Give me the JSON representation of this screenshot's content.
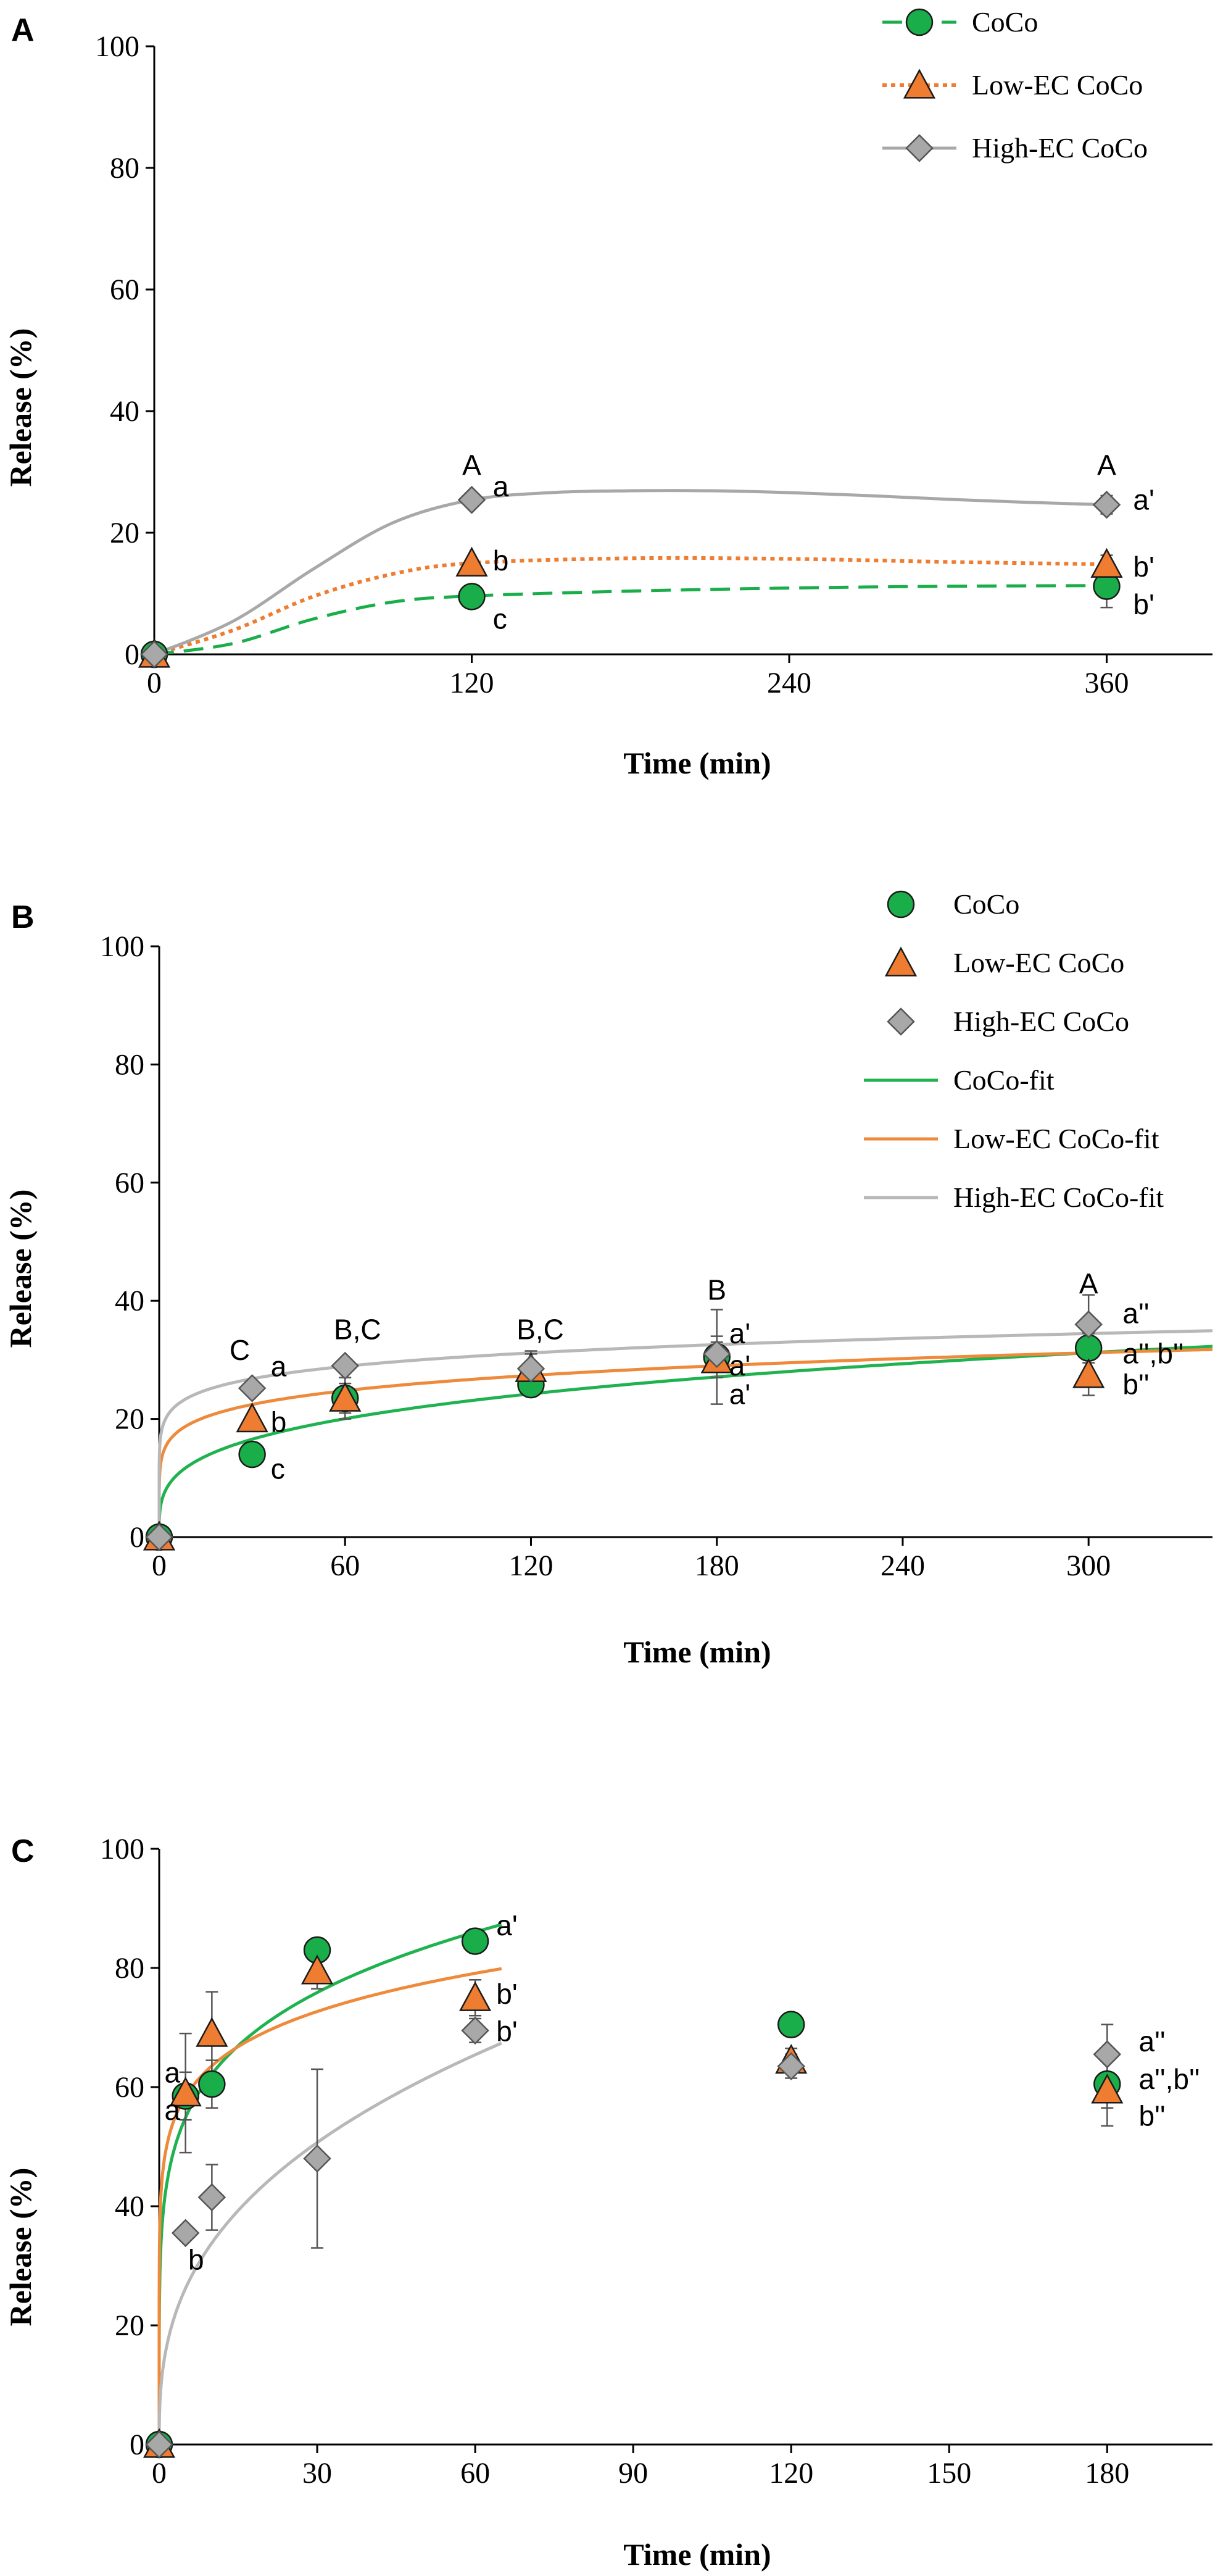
{
  "colors": {
    "coco": "#1aae4a",
    "low": "#ee7d31",
    "high": "#a8a8a8",
    "low_fit": "#ee8a3b",
    "high_fit": "#b8b8b8",
    "coco_fit": "#1fb24f",
    "axis": "#000000"
  },
  "chart_data": [
    {
      "panel": "A",
      "type": "line",
      "ylabel": "Release (%)",
      "xlabel": "Time (min)",
      "xlim": [
        0,
        400
      ],
      "ylim": [
        0,
        100
      ],
      "x_ticks": [
        0,
        120,
        240,
        360
      ],
      "y_ticks": [
        0,
        20,
        40,
        60,
        80,
        100
      ],
      "legend_position": "top-right",
      "legend": [
        {
          "label": "CoCo",
          "key": "coco",
          "marker": "circle",
          "line": "dashed"
        },
        {
          "label": "Low-EC CoCo",
          "key": "low",
          "marker": "triangle",
          "line": "dotted"
        },
        {
          "label": "High-EC CoCo",
          "key": "high",
          "marker": "diamond",
          "line": "solid"
        }
      ],
      "series": [
        {
          "name": "CoCo",
          "key": "coco",
          "marker": "circle",
          "line": "dashed",
          "x": [
            0,
            120,
            360
          ],
          "values": [
            0,
            9.5,
            11.2
          ],
          "err": [
            0,
            0,
            3.5
          ],
          "smooth": [
            [
              0,
              0
            ],
            [
              30,
              1.8
            ],
            [
              60,
              5.8
            ],
            [
              90,
              8.6
            ],
            [
              120,
              9.6
            ],
            [
              180,
              10.4
            ],
            [
              240,
              10.9
            ],
            [
              300,
              11.2
            ],
            [
              360,
              11.3
            ]
          ]
        },
        {
          "name": "Low-EC CoCo",
          "key": "low",
          "marker": "triangle",
          "line": "dotted",
          "x": [
            0,
            120,
            360
          ],
          "values": [
            0,
            15,
            14.8
          ],
          "err": [
            0,
            0,
            1.5
          ],
          "smooth": [
            [
              0,
              0
            ],
            [
              30,
              4.0
            ],
            [
              60,
              9.5
            ],
            [
              90,
              13.2
            ],
            [
              120,
              15.0
            ],
            [
              180,
              15.8
            ],
            [
              240,
              15.7
            ],
            [
              300,
              15.2
            ],
            [
              360,
              14.8
            ]
          ]
        },
        {
          "name": "High-EC CoCo",
          "key": "high",
          "marker": "diamond",
          "line": "solid",
          "x": [
            0,
            120,
            360
          ],
          "values": [
            0,
            25.4,
            24.6
          ],
          "err": [
            0,
            0,
            1.5
          ],
          "smooth": [
            [
              0,
              0
            ],
            [
              30,
              5.5
            ],
            [
              60,
              14.0
            ],
            [
              90,
              21.6
            ],
            [
              120,
              25.4
            ],
            [
              150,
              26.6
            ],
            [
              180,
              26.9
            ],
            [
              210,
              26.9
            ],
            [
              240,
              26.6
            ],
            [
              270,
              26.1
            ],
            [
              300,
              25.5
            ],
            [
              330,
              25.0
            ],
            [
              360,
              24.6
            ]
          ]
        }
      ],
      "annotations": [
        {
          "text": "A",
          "x": 120,
          "y": 29.5,
          "anchor": "middle"
        },
        {
          "text": "a",
          "x": 128,
          "y": 26.0,
          "anchor": "start"
        },
        {
          "text": "b",
          "x": 128,
          "y": 13.8,
          "anchor": "start"
        },
        {
          "text": "c",
          "x": 128,
          "y": 4.2,
          "anchor": "start"
        },
        {
          "text": "A",
          "x": 360,
          "y": 29.5,
          "anchor": "middle"
        },
        {
          "text": "a'",
          "x": 370,
          "y": 23.8,
          "anchor": "start"
        },
        {
          "text": "b'",
          "x": 370,
          "y": 12.8,
          "anchor": "start"
        },
        {
          "text": "b'",
          "x": 370,
          "y": 6.6,
          "anchor": "start"
        }
      ]
    },
    {
      "panel": "B",
      "type": "scatter",
      "ylabel": "Release (%)",
      "xlabel": "Time (min)",
      "xlim": [
        0,
        340
      ],
      "ylim": [
        0,
        100
      ],
      "x_ticks": [
        0,
        60,
        120,
        180,
        240,
        300
      ],
      "y_ticks": [
        0,
        20,
        40,
        60,
        80,
        100
      ],
      "legend_position": "top-right",
      "legend": [
        {
          "label": "CoCo",
          "key": "coco",
          "marker": "circle"
        },
        {
          "label": "Low-EC CoCo",
          "key": "low",
          "marker": "triangle"
        },
        {
          "label": "High-EC CoCo",
          "key": "high",
          "marker": "diamond"
        },
        {
          "label": "CoCo-fit",
          "key": "coco_fit",
          "line": "solid"
        },
        {
          "label": "Low-EC CoCo-fit",
          "key": "low_fit",
          "line": "solid"
        },
        {
          "label": "High-EC CoCo-fit",
          "key": "high_fit",
          "line": "solid"
        }
      ],
      "series": [
        {
          "name": "CoCo",
          "key": "coco",
          "marker": "circle",
          "x": [
            0,
            30,
            60,
            120,
            180,
            300
          ],
          "values": [
            0,
            14,
            23.5,
            25.8,
            30.5,
            32
          ],
          "err": [
            0,
            0,
            2.5,
            0,
            8,
            2.5
          ]
        },
        {
          "name": "Low-EC CoCo",
          "key": "low",
          "marker": "triangle",
          "x": [
            0,
            30,
            60,
            120,
            180,
            300
          ],
          "values": [
            0,
            20,
            23.5,
            28.5,
            30,
            27.5
          ],
          "err": [
            0,
            0,
            3.5,
            3,
            3,
            3.5
          ]
        },
        {
          "name": "High-EC CoCo",
          "key": "high",
          "marker": "diamond",
          "x": [
            0,
            30,
            60,
            120,
            180,
            300
          ],
          "values": [
            0,
            25.2,
            29,
            28.5,
            31,
            36
          ],
          "err": [
            0,
            0,
            0,
            2.5,
            3,
            5
          ]
        }
      ],
      "fits": [
        {
          "name": "CoCo-fit",
          "key": "coco_fit",
          "model": "power",
          "k": 6.5,
          "n": 0.275,
          "x_max": 340
        },
        {
          "name": "Low-EC CoCo-fit",
          "key": "low_fit",
          "model": "power",
          "k": 13.8,
          "n": 0.143,
          "x_max": 340
        },
        {
          "name": "High-EC CoCo-fit",
          "key": "high_fit",
          "model": "power",
          "k": 18.5,
          "n": 0.109,
          "x_max": 340
        }
      ],
      "annotations": [
        {
          "text": "C",
          "x": 26,
          "y": 30.0,
          "anchor": "middle"
        },
        {
          "text": "a",
          "x": 36,
          "y": 27.2,
          "anchor": "start"
        },
        {
          "text": "b",
          "x": 36,
          "y": 17.8,
          "anchor": "start"
        },
        {
          "text": "c",
          "x": 36,
          "y": 9.9,
          "anchor": "start"
        },
        {
          "text": "B,C",
          "x": 64,
          "y": 33.5,
          "anchor": "middle"
        },
        {
          "text": "B,C",
          "x": 123,
          "y": 33.5,
          "anchor": "middle"
        },
        {
          "text": "B",
          "x": 180,
          "y": 40.2,
          "anchor": "middle"
        },
        {
          "text": "a'",
          "x": 184,
          "y": 32.8,
          "anchor": "start"
        },
        {
          "text": "a'",
          "x": 184,
          "y": 27.4,
          "anchor": "start"
        },
        {
          "text": "a'",
          "x": 184,
          "y": 22.5,
          "anchor": "start"
        },
        {
          "text": "A",
          "x": 300,
          "y": 41.2,
          "anchor": "middle"
        },
        {
          "text": "a''",
          "x": 311,
          "y": 36.2,
          "anchor": "start"
        },
        {
          "text": "a'',b''",
          "x": 311,
          "y": 29.4,
          "anchor": "start"
        },
        {
          "text": "b''",
          "x": 311,
          "y": 24.2,
          "anchor": "start"
        }
      ]
    },
    {
      "panel": "C",
      "type": "scatter",
      "ylabel": "Release (%)",
      "xlabel": "Time (min)",
      "xlim": [
        0,
        200
      ],
      "ylim": [
        0,
        100
      ],
      "x_ticks": [
        0,
        30,
        60,
        90,
        120,
        150,
        180
      ],
      "y_ticks": [
        0,
        20,
        40,
        60,
        80,
        100
      ],
      "series": [
        {
          "name": "CoCo",
          "key": "coco",
          "marker": "circle",
          "x": [
            0,
            5,
            10,
            30,
            60,
            120,
            180
          ],
          "values": [
            0,
            58.5,
            60.5,
            83,
            84.5,
            70.5,
            60.5
          ],
          "err": [
            0,
            4,
            4,
            2,
            2,
            2,
            4
          ]
        },
        {
          "name": "Low-EC CoCo",
          "key": "low",
          "marker": "triangle",
          "x": [
            0,
            5,
            10,
            30,
            60,
            120,
            180
          ],
          "values": [
            0,
            59,
            69,
            79.5,
            75,
            64.5,
            59.5
          ],
          "err": [
            0,
            10,
            7,
            3,
            3,
            2,
            6
          ]
        },
        {
          "name": "High-EC CoCo",
          "key": "high",
          "marker": "diamond",
          "x": [
            0,
            5,
            10,
            30,
            60,
            120,
            180
          ],
          "values": [
            0,
            35.5,
            41.5,
            48,
            69.5,
            63.5,
            65.5
          ],
          "err": [
            0,
            0,
            5.5,
            15,
            2,
            2,
            5
          ]
        }
      ],
      "fits": [
        {
          "name": "CoCo-fit",
          "key": "coco_fit",
          "model": "power",
          "k": 41,
          "n": 0.181,
          "x_max": 65
        },
        {
          "name": "Low-EC CoCo-fit",
          "key": "low_fit",
          "model": "power",
          "k": 48,
          "n": 0.122,
          "x_max": 65
        },
        {
          "name": "High-EC CoCo-fit",
          "key": "high_fit",
          "model": "power",
          "k": 14.5,
          "n": 0.368,
          "x_max": 65
        }
      ],
      "annotations": [
        {
          "text": "a'",
          "x": 64,
          "y": 85.5,
          "anchor": "start"
        },
        {
          "text": "b'",
          "x": 64,
          "y": 74.0,
          "anchor": "start"
        },
        {
          "text": "b'",
          "x": 64,
          "y": 67.7,
          "anchor": "start"
        },
        {
          "text": "a",
          "x": 1,
          "y": 60.8,
          "anchor": "start"
        },
        {
          "text": "a",
          "x": 1,
          "y": 54.5,
          "anchor": "start"
        },
        {
          "text": "b",
          "x": 5.5,
          "y": 29.4,
          "anchor": "start"
        },
        {
          "text": "a''",
          "x": 186,
          "y": 66.0,
          "anchor": "start"
        },
        {
          "text": "a'',b''",
          "x": 186,
          "y": 59.7,
          "anchor": "start"
        },
        {
          "text": "b''",
          "x": 186,
          "y": 53.5,
          "anchor": "start"
        }
      ]
    }
  ]
}
